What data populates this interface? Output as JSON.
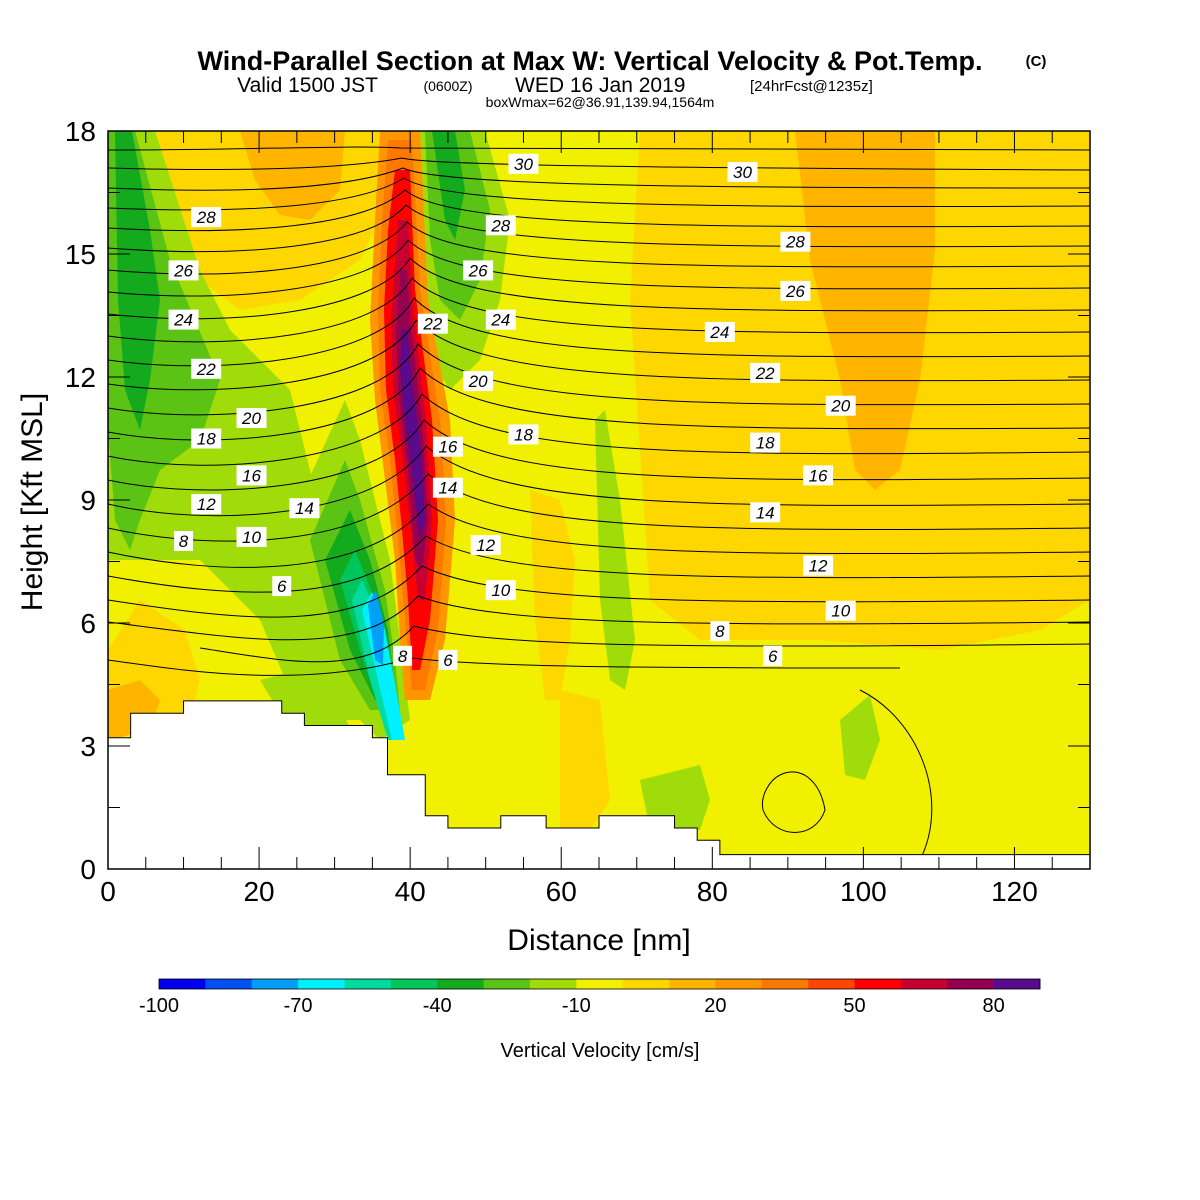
{
  "title": {
    "main": "Wind-Parallel Section at Max W: Vertical Velocity & Pot.Temp.",
    "main_unit": "(C)",
    "valid_prefix": "Valid 1500 JST",
    "valid_utc": "(0600Z)",
    "valid_date": "WED 16 Jan 2019",
    "forecast": "[24hrFcst@1235z]",
    "box_info": "boxWmax=62@36.91,139.94,1564m"
  },
  "chart_data": {
    "type": "heatmap",
    "xlabel": "Distance [nm]",
    "ylabel": "Height [Kft MSL]",
    "xlim": [
      0,
      130
    ],
    "ylim": [
      0,
      18
    ],
    "x_ticks": [
      0,
      20,
      40,
      60,
      80,
      100,
      120
    ],
    "y_ticks": [
      0,
      3,
      6,
      9,
      12,
      15,
      18
    ],
    "colorbar": {
      "label": "Vertical Velocity [cm/s]",
      "range": [
        -100,
        90
      ],
      "tick_values": [
        -100,
        -70,
        -40,
        -10,
        20,
        50,
        80
      ],
      "colors": [
        "#0000ee",
        "#0050f0",
        "#00a0f8",
        "#00f0ff",
        "#00dca0",
        "#00c55a",
        "#14aa1e",
        "#5ac314",
        "#a0dc0a",
        "#f0f000",
        "#ffd700",
        "#ffb400",
        "#ff9600",
        "#ff7800",
        "#ff4600",
        "#ff0000",
        "#c80032",
        "#960050",
        "#5a0a8c"
      ]
    },
    "terrain_profile": [
      [
        0,
        3.2
      ],
      [
        3,
        3.2
      ],
      [
        3,
        3.8
      ],
      [
        10,
        3.8
      ],
      [
        10,
        4.1
      ],
      [
        23,
        4.1
      ],
      [
        23,
        3.8
      ],
      [
        26,
        3.8
      ],
      [
        26,
        3.5
      ],
      [
        35,
        3.5
      ],
      [
        35,
        3.2
      ],
      [
        37,
        3.2
      ],
      [
        37,
        2.3
      ],
      [
        42,
        2.3
      ],
      [
        42,
        1.3
      ],
      [
        45,
        1.3
      ],
      [
        45,
        1.0
      ],
      [
        52,
        1.0
      ],
      [
        52,
        1.3
      ],
      [
        58,
        1.3
      ],
      [
        58,
        1.0
      ],
      [
        65,
        1.0
      ],
      [
        65,
        1.3
      ],
      [
        75,
        1.3
      ],
      [
        75,
        1.0
      ],
      [
        78,
        1.0
      ],
      [
        78,
        0.7
      ],
      [
        81,
        0.7
      ],
      [
        81,
        0.35
      ],
      [
        130,
        0.35
      ]
    ],
    "theta_labels": [
      {
        "text": "30",
        "x": 55,
        "y": 17.2
      },
      {
        "text": "30",
        "x": 84,
        "y": 17.0
      },
      {
        "text": "28",
        "x": 13,
        "y": 15.9
      },
      {
        "text": "28",
        "x": 52,
        "y": 15.7
      },
      {
        "text": "28",
        "x": 91,
        "y": 15.3
      },
      {
        "text": "26",
        "x": 10,
        "y": 14.6
      },
      {
        "text": "26",
        "x": 49,
        "y": 14.6
      },
      {
        "text": "26",
        "x": 91,
        "y": 14.1
      },
      {
        "text": "24",
        "x": 10,
        "y": 13.4
      },
      {
        "text": "22",
        "x": 43,
        "y": 13.3
      },
      {
        "text": "24",
        "x": 52,
        "y": 13.4
      },
      {
        "text": "24",
        "x": 81,
        "y": 13.1
      },
      {
        "text": "22",
        "x": 13,
        "y": 12.2
      },
      {
        "text": "20",
        "x": 49,
        "y": 11.9
      },
      {
        "text": "22",
        "x": 87,
        "y": 12.1
      },
      {
        "text": "20",
        "x": 19,
        "y": 11.0
      },
      {
        "text": "20",
        "x": 97,
        "y": 11.3
      },
      {
        "text": "18",
        "x": 13,
        "y": 10.5
      },
      {
        "text": "16",
        "x": 45,
        "y": 10.3
      },
      {
        "text": "18",
        "x": 55,
        "y": 10.6
      },
      {
        "text": "18",
        "x": 87,
        "y": 10.4
      },
      {
        "text": "16",
        "x": 19,
        "y": 9.6
      },
      {
        "text": "14",
        "x": 45,
        "y": 9.3
      },
      {
        "text": "16",
        "x": 94,
        "y": 9.6
      },
      {
        "text": "12",
        "x": 13,
        "y": 8.9
      },
      {
        "text": "14",
        "x": 26,
        "y": 8.8
      },
      {
        "text": "14",
        "x": 87,
        "y": 8.7
      },
      {
        "text": "8",
        "x": 10,
        "y": 8.0
      },
      {
        "text": "10",
        "x": 19,
        "y": 8.1
      },
      {
        "text": "12",
        "x": 50,
        "y": 7.9
      },
      {
        "text": "12",
        "x": 94,
        "y": 7.4
      },
      {
        "text": "6",
        "x": 23,
        "y": 6.9
      },
      {
        "text": "10",
        "x": 52,
        "y": 6.8
      },
      {
        "text": "10",
        "x": 97,
        "y": 6.3
      },
      {
        "text": "8",
        "x": 81,
        "y": 5.8
      },
      {
        "text": "8",
        "x": 39,
        "y": 5.2
      },
      {
        "text": "6",
        "x": 45,
        "y": 5.1
      },
      {
        "text": "6",
        "x": 88,
        "y": 5.2
      }
    ]
  }
}
